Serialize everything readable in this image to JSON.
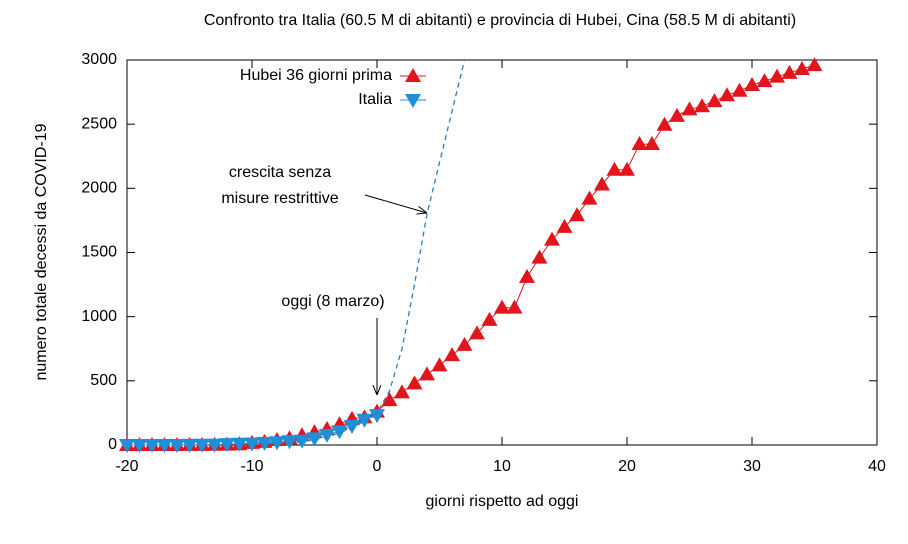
{
  "chart_data": {
    "type": "line",
    "title": "Confronto tra Italia (60.5 M di abitanti) e provincia di Hubei, Cina (58.5 M di abitanti)",
    "xlabel": "giorni rispetto ad oggi",
    "ylabel": "numero totale decessi da COVID-19",
    "xlim": [
      -20,
      40
    ],
    "xticks": [
      -20,
      -10,
      0,
      10,
      20,
      30,
      40
    ],
    "ylim": [
      0,
      3000
    ],
    "yticks": [
      0,
      500,
      1000,
      1500,
      2000,
      2500,
      3000
    ],
    "legend": "top-left",
    "series": [
      {
        "name": "Hubei 36 giorni prima",
        "color": "#e3141b",
        "marker": "triangle-up",
        "x": [
          -20,
          -19,
          -18,
          -17,
          -16,
          -15,
          -14,
          -13,
          -12,
          -11,
          -10,
          -9,
          -8,
          -7,
          -6,
          -5,
          -4,
          -3,
          -2,
          -1,
          0,
          1,
          2,
          3,
          4,
          5,
          6,
          7,
          8,
          9,
          10,
          11,
          12,
          13,
          14,
          15,
          16,
          17,
          18,
          19,
          20,
          21,
          22,
          23,
          24,
          25,
          26,
          27,
          28,
          29,
          30,
          31,
          32,
          33,
          34,
          35
        ],
        "values": [
          0,
          0,
          0,
          0,
          0,
          1,
          1,
          2,
          3,
          6,
          17,
          24,
          39,
          52,
          76,
          100,
          125,
          162,
          204,
          215,
          260,
          350,
          410,
          480,
          550,
          620,
          700,
          780,
          870,
          975,
          1070,
          1070,
          1310,
          1460,
          1600,
          1700,
          1790,
          1920,
          2030,
          2145,
          2145,
          2345,
          2345,
          2495,
          2565,
          2615,
          2640,
          2680,
          2725,
          2760,
          2805,
          2835,
          2870,
          2900,
          2930,
          2960
        ]
      },
      {
        "name": "Italia",
        "color": "#1f8fd8",
        "marker": "triangle-down",
        "x": [
          -20,
          -19,
          -18,
          -17,
          -16,
          -15,
          -14,
          -13,
          -12,
          -11,
          -10,
          -9,
          -8,
          -7,
          -6,
          -5,
          -4,
          -3,
          -2,
          -1,
          0
        ],
        "values": [
          0,
          0,
          0,
          0,
          0,
          1,
          2,
          3,
          7,
          10,
          12,
          17,
          21,
          29,
          34,
          52,
          79,
          107,
          148,
          197,
          233
        ]
      },
      {
        "color": "#2a7fc4",
        "style": "dashed",
        "x": [
          -10,
          -8,
          -6,
          -4,
          -2,
          0,
          1,
          2,
          3,
          4,
          5,
          6,
          7
        ],
        "values": [
          5,
          10,
          25,
          60,
          130,
          250,
          420,
          750,
          1250,
          1800,
          2200,
          2600,
          3000
        ]
      }
    ],
    "annotations": [
      {
        "text": [
          "crescita senza",
          "misure restrittive"
        ]
      },
      {
        "text": [
          "oggi (8 marzo)"
        ]
      }
    ]
  }
}
